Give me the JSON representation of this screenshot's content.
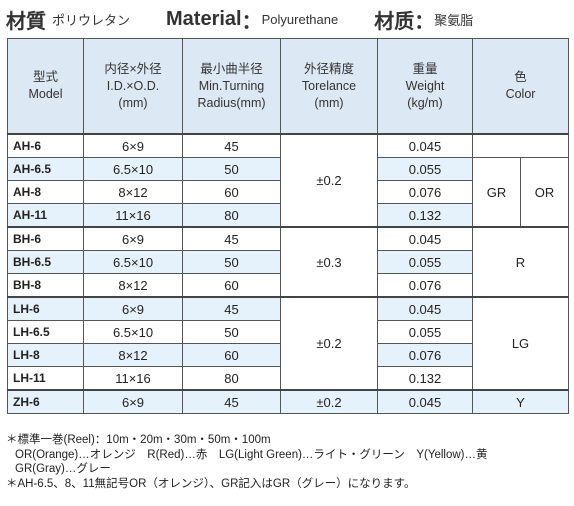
{
  "header": {
    "label_jp": "材質",
    "value_jp": "ポリウレタン",
    "label_en": "Material",
    "colon": "：",
    "value_en": "Polyurethane",
    "label_cn": "材质",
    "value_cn": "聚氨脂"
  },
  "columns": {
    "model": [
      "型式",
      "Model"
    ],
    "dims": [
      "内径×外径",
      "I.D.×O.D.",
      "(mm)"
    ],
    "radius": [
      "最小曲半径",
      "Min.Turning",
      "Radius(mm)"
    ],
    "tol": [
      "外径精度",
      "Torelance",
      "(mm)"
    ],
    "weight": [
      "重量",
      "Weight",
      "(kg/m)"
    ],
    "color": [
      "色",
      "Color"
    ]
  },
  "rows": [
    {
      "model": "AH-6",
      "dims": "6×9",
      "radius": "45",
      "weight": "0.045"
    },
    {
      "model": "AH-6.5",
      "dims": "6.5×10",
      "radius": "50",
      "weight": "0.055"
    },
    {
      "model": "AH-8",
      "dims": "8×12",
      "radius": "60",
      "weight": "0.076"
    },
    {
      "model": "AH-11",
      "dims": "11×16",
      "radius": "80",
      "weight": "0.132"
    },
    {
      "model": "BH-6",
      "dims": "6×9",
      "radius": "45",
      "weight": "0.045"
    },
    {
      "model": "BH-6.5",
      "dims": "6.5×10",
      "radius": "50",
      "weight": "0.055"
    },
    {
      "model": "BH-8",
      "dims": "8×12",
      "radius": "60",
      "weight": "0.076"
    },
    {
      "model": "LH-6",
      "dims": "6×9",
      "radius": "45",
      "weight": "0.045"
    },
    {
      "model": "LH-6.5",
      "dims": "6.5×10",
      "radius": "50",
      "weight": "0.055"
    },
    {
      "model": "LH-8",
      "dims": "8×12",
      "radius": "60",
      "weight": "0.076"
    },
    {
      "model": "LH-11",
      "dims": "11×16",
      "radius": "80",
      "weight": "0.132"
    },
    {
      "model": "ZH-6",
      "dims": "6×9",
      "radius": "45",
      "weight": "0.045"
    }
  ],
  "groups": {
    "ah": {
      "tol": "±0.2",
      "color_gr": "GR",
      "color_or": "OR"
    },
    "bh": {
      "tol": "±0.3",
      "color": "R"
    },
    "lh": {
      "tol": "±0.2",
      "color": "LG"
    },
    "zh": {
      "tol": "±0.2",
      "color": "Y"
    }
  },
  "notes": [
    "＊標準一巻(Reel)：10m・20m・30m・50m・100m",
    "OR(Orange)…オレンジ　R(Red)…赤　LG(Light Green)…ライト・グリーン　Y(Yellow)…黄",
    "GR(Gray)…グレー",
    "＊AH-6.5、8、11無記号OR（オレンジ）、GR記入はGR（グレー）になります。"
  ],
  "colors": {
    "header_bg": "#dce8f3",
    "alt_row_bg": "#e6f2fb",
    "border": "#555555"
  }
}
